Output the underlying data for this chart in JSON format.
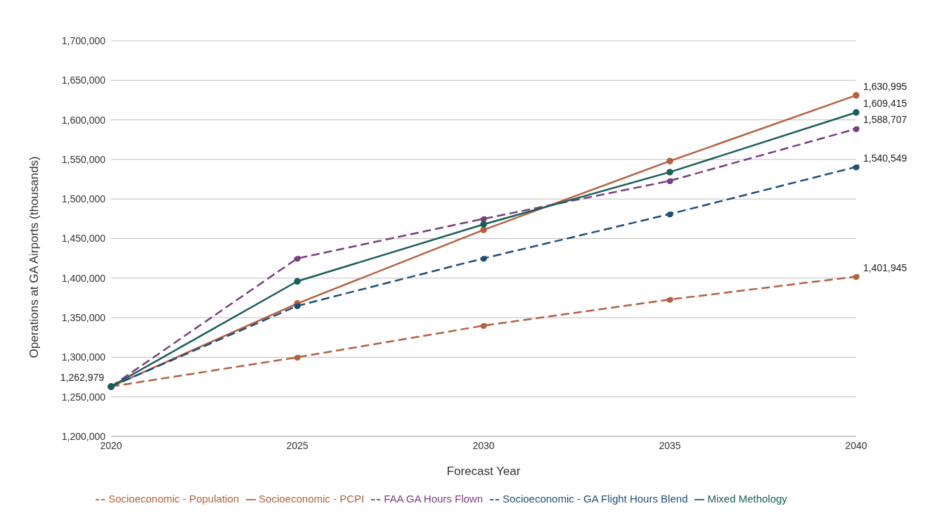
{
  "chart_data": {
    "type": "line",
    "xlabel": "Forecast Year",
    "ylabel": "Operations at GA Airports (thousands)",
    "categories": [
      "2020",
      "2025",
      "2030",
      "2035",
      "2040"
    ],
    "series": [
      {
        "name": "Socioeconomic - Population",
        "color": "#b5603f",
        "line_style": "dashed",
        "values": [
          1262979,
          1300000,
          1340000,
          1373000,
          1401945
        ],
        "value_labels": [
          "1,262,979",
          null,
          null,
          null,
          "1,401,945"
        ]
      },
      {
        "name": "Socioeconomic - PCPI",
        "color": "#b5603f",
        "line_style": "solid",
        "values": [
          1263000,
          1368000,
          1461000,
          1548000,
          1630995
        ],
        "value_labels": [
          null,
          null,
          null,
          null,
          "1,630,995"
        ]
      },
      {
        "name": "FAA GA Hours Flown",
        "color": "#7a3f7f",
        "line_style": "dashed",
        "values": [
          1263000,
          1425000,
          1475000,
          1523000,
          1588707
        ],
        "value_labels": [
          null,
          null,
          null,
          null,
          "1,588,707"
        ]
      },
      {
        "name": "Socioeconomic - GA Flight Hours Blend",
        "color": "#1f4e79",
        "line_style": "dashed",
        "values": [
          1263000,
          1365000,
          1425000,
          1481000,
          1540549
        ],
        "value_labels": [
          null,
          null,
          null,
          null,
          "1,540,549"
        ]
      },
      {
        "name": "Mixed Methology",
        "color": "#1a5e5a",
        "line_style": "solid",
        "values": [
          1263000,
          1396000,
          1468000,
          1534000,
          1609415
        ],
        "value_labels": [
          null,
          null,
          null,
          null,
          "1,609,415"
        ]
      }
    ],
    "ylim": [
      1200000,
      1700000
    ],
    "yticks": [
      {
        "value": 1200000,
        "label": "1,200,000"
      },
      {
        "value": 1250000,
        "label": "1,250,000"
      },
      {
        "value": 1300000,
        "label": "1,300,000"
      },
      {
        "value": 1350000,
        "label": "1,350,000"
      },
      {
        "value": 1400000,
        "label": "1,400,000"
      },
      {
        "value": 1450000,
        "label": "1,450,000"
      },
      {
        "value": 1500000,
        "label": "1,500,000"
      },
      {
        "value": 1550000,
        "label": "1,550,000"
      },
      {
        "value": 1600000,
        "label": "1,600,000"
      },
      {
        "value": 1650000,
        "label": "1,650,000"
      },
      {
        "value": 1700000,
        "label": "1,700,000"
      }
    ],
    "grid": "y",
    "legend": "bottom",
    "marker": "circle"
  }
}
